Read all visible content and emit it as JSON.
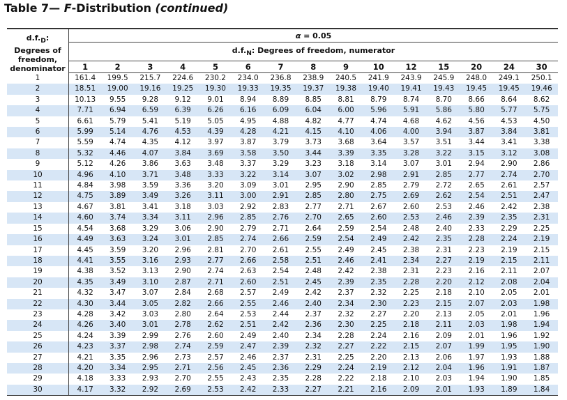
{
  "header": {
    "title": [
      "Table 7— ",
      "F",
      "-Distribution ",
      "(continued)"
    ]
  },
  "table": {
    "stub": {
      "df": "d.f.",
      "sub": "D",
      "colon": ":",
      "text": "Degrees of freedom, denominator"
    },
    "alpha": {
      "symbol": "α",
      "text": "= 0.05"
    },
    "numerator": {
      "df": "d.f.",
      "sub": "N",
      "text": ": Degrees of freedom, numerator"
    },
    "columns": [
      "1",
      "2",
      "3",
      "4",
      "5",
      "6",
      "7",
      "8",
      "9",
      "10",
      "12",
      "15",
      "20",
      "24",
      "30"
    ],
    "rows": [
      [
        "1",
        "161.4",
        "199.5",
        "215.7",
        "224.6",
        "230.2",
        "234.0",
        "236.8",
        "238.9",
        "240.5",
        "241.9",
        "243.9",
        "245.9",
        "248.0",
        "249.1",
        "250.1"
      ],
      [
        "2",
        "18.51",
        "19.00",
        "19.16",
        "19.25",
        "19.30",
        "19.33",
        "19.35",
        "19.37",
        "19.38",
        "19.40",
        "19.41",
        "19.43",
        "19.45",
        "19.45",
        "19.46"
      ],
      [
        "3",
        "10.13",
        "9.55",
        "9.28",
        "9.12",
        "9.01",
        "8.94",
        "8.89",
        "8.85",
        "8.81",
        "8.79",
        "8.74",
        "8.70",
        "8.66",
        "8.64",
        "8.62"
      ],
      [
        "4",
        "7.71",
        "6.94",
        "6.59",
        "6.39",
        "6.26",
        "6.16",
        "6.09",
        "6.04",
        "6.00",
        "5.96",
        "5.91",
        "5.86",
        "5.80",
        "5.77",
        "5.75"
      ],
      [
        "5",
        "6.61",
        "5.79",
        "5.41",
        "5.19",
        "5.05",
        "4.95",
        "4.88",
        "4.82",
        "4.77",
        "4.74",
        "4.68",
        "4.62",
        "4.56",
        "4.53",
        "4.50"
      ],
      [
        "6",
        "5.99",
        "5.14",
        "4.76",
        "4.53",
        "4.39",
        "4.28",
        "4.21",
        "4.15",
        "4.10",
        "4.06",
        "4.00",
        "3.94",
        "3.87",
        "3.84",
        "3.81"
      ],
      [
        "7",
        "5.59",
        "4.74",
        "4.35",
        "4.12",
        "3.97",
        "3.87",
        "3.79",
        "3.73",
        "3.68",
        "3.64",
        "3.57",
        "3.51",
        "3.44",
        "3.41",
        "3.38"
      ],
      [
        "8",
        "5.32",
        "4.46",
        "4.07",
        "3.84",
        "3.69",
        "3.58",
        "3.50",
        "3.44",
        "3.39",
        "3.35",
        "3.28",
        "3.22",
        "3.15",
        "3.12",
        "3.08"
      ],
      [
        "9",
        "5.12",
        "4.26",
        "3.86",
        "3.63",
        "3.48",
        "3.37",
        "3.29",
        "3.23",
        "3.18",
        "3.14",
        "3.07",
        "3.01",
        "2.94",
        "2.90",
        "2.86"
      ],
      [
        "10",
        "4.96",
        "4.10",
        "3.71",
        "3.48",
        "3.33",
        "3.22",
        "3.14",
        "3.07",
        "3.02",
        "2.98",
        "2.91",
        "2.85",
        "2.77",
        "2.74",
        "2.70"
      ],
      [
        "11",
        "4.84",
        "3.98",
        "3.59",
        "3.36",
        "3.20",
        "3.09",
        "3.01",
        "2.95",
        "2.90",
        "2.85",
        "2.79",
        "2.72",
        "2.65",
        "2.61",
        "2.57"
      ],
      [
        "12",
        "4.75",
        "3.89",
        "3.49",
        "3.26",
        "3.11",
        "3.00",
        "2.91",
        "2.85",
        "2.80",
        "2.75",
        "2.69",
        "2.62",
        "2.54",
        "2.51",
        "2.47"
      ],
      [
        "13",
        "4.67",
        "3.81",
        "3.41",
        "3.18",
        "3.03",
        "2.92",
        "2.83",
        "2.77",
        "2.71",
        "2.67",
        "2.60",
        "2.53",
        "2.46",
        "2.42",
        "2.38"
      ],
      [
        "14",
        "4.60",
        "3.74",
        "3.34",
        "3.11",
        "2.96",
        "2.85",
        "2.76",
        "2.70",
        "2.65",
        "2.60",
        "2.53",
        "2.46",
        "2.39",
        "2.35",
        "2.31"
      ],
      [
        "15",
        "4.54",
        "3.68",
        "3.29",
        "3.06",
        "2.90",
        "2.79",
        "2.71",
        "2.64",
        "2.59",
        "2.54",
        "2.48",
        "2.40",
        "2.33",
        "2.29",
        "2.25"
      ],
      [
        "16",
        "4.49",
        "3.63",
        "3.24",
        "3.01",
        "2.85",
        "2.74",
        "2.66",
        "2.59",
        "2.54",
        "2.49",
        "2.42",
        "2.35",
        "2.28",
        "2.24",
        "2.19"
      ],
      [
        "17",
        "4.45",
        "3.59",
        "3.20",
        "2.96",
        "2.81",
        "2.70",
        "2.61",
        "2.55",
        "2.49",
        "2.45",
        "2.38",
        "2.31",
        "2.23",
        "2.19",
        "2.15"
      ],
      [
        "18",
        "4.41",
        "3.55",
        "3.16",
        "2.93",
        "2.77",
        "2.66",
        "2.58",
        "2.51",
        "2.46",
        "2.41",
        "2.34",
        "2.27",
        "2.19",
        "2.15",
        "2.11"
      ],
      [
        "19",
        "4.38",
        "3.52",
        "3.13",
        "2.90",
        "2.74",
        "2.63",
        "2.54",
        "2.48",
        "2.42",
        "2.38",
        "2.31",
        "2.23",
        "2.16",
        "2.11",
        "2.07"
      ],
      [
        "20",
        "4.35",
        "3.49",
        "3.10",
        "2.87",
        "2.71",
        "2.60",
        "2.51",
        "2.45",
        "2.39",
        "2.35",
        "2.28",
        "2.20",
        "2.12",
        "2.08",
        "2.04"
      ],
      [
        "21",
        "4.32",
        "3.47",
        "3.07",
        "2.84",
        "2.68",
        "2.57",
        "2.49",
        "2.42",
        "2.37",
        "2.32",
        "2.25",
        "2.18",
        "2.10",
        "2.05",
        "2.01"
      ],
      [
        "22",
        "4.30",
        "3.44",
        "3.05",
        "2.82",
        "2.66",
        "2.55",
        "2.46",
        "2.40",
        "2.34",
        "2.30",
        "2.23",
        "2.15",
        "2.07",
        "2.03",
        "1.98"
      ],
      [
        "23",
        "4.28",
        "3.42",
        "3.03",
        "2.80",
        "2.64",
        "2.53",
        "2.44",
        "2.37",
        "2.32",
        "2.27",
        "2.20",
        "2.13",
        "2.05",
        "2.01",
        "1.96"
      ],
      [
        "24",
        "4.26",
        "3.40",
        "3.01",
        "2.78",
        "2.62",
        "2.51",
        "2.42",
        "2.36",
        "2.30",
        "2.25",
        "2.18",
        "2.11",
        "2.03",
        "1.98",
        "1.94"
      ],
      [
        "25",
        "4.24",
        "3.39",
        "2.99",
        "2.76",
        "2.60",
        "2.49",
        "2.40",
        "2.34",
        "2.28",
        "2.24",
        "2.16",
        "2.09",
        "2.01",
        "1.96",
        "1.92"
      ],
      [
        "26",
        "4.23",
        "3.37",
        "2.98",
        "2.74",
        "2.59",
        "2.47",
        "2.39",
        "2.32",
        "2.27",
        "2.22",
        "2.15",
        "2.07",
        "1.99",
        "1.95",
        "1.90"
      ],
      [
        "27",
        "4.21",
        "3.35",
        "2.96",
        "2.73",
        "2.57",
        "2.46",
        "2.37",
        "2.31",
        "2.25",
        "2.20",
        "2.13",
        "2.06",
        "1.97",
        "1.93",
        "1.88"
      ],
      [
        "28",
        "4.20",
        "3.34",
        "2.95",
        "2.71",
        "2.56",
        "2.45",
        "2.36",
        "2.29",
        "2.24",
        "2.19",
        "2.12",
        "2.04",
        "1.96",
        "1.91",
        "1.87"
      ],
      [
        "29",
        "4.18",
        "3.33",
        "2.93",
        "2.70",
        "2.55",
        "2.43",
        "2.35",
        "2.28",
        "2.22",
        "2.18",
        "2.10",
        "2.03",
        "1.94",
        "1.90",
        "1.85"
      ],
      [
        "30",
        "4.17",
        "3.32",
        "2.92",
        "2.69",
        "2.53",
        "2.42",
        "2.33",
        "2.27",
        "2.21",
        "2.16",
        "2.09",
        "2.01",
        "1.93",
        "1.89",
        "1.84"
      ]
    ]
  }
}
